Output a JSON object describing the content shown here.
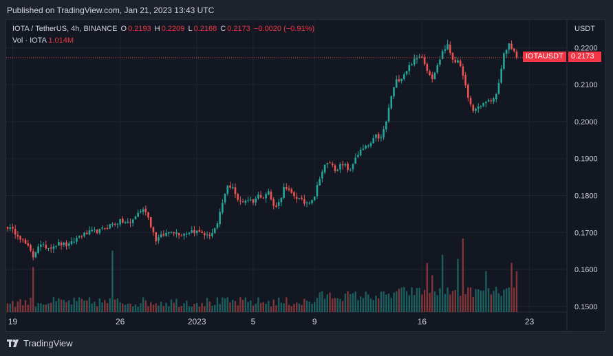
{
  "published": "Published on TradingView.com, Jan 21, 2023 13:43 UTC",
  "legend": {
    "symbol": "IOTA / TetherUS, 4h, BINANCE",
    "o_label": "O",
    "o": "0.2193",
    "h_label": "H",
    "h": "0.2209",
    "l_label": "L",
    "l": "0.2168",
    "c_label": "C",
    "c": "0.2173",
    "change": "−0.0020 (−0.91%)",
    "vol_label": "Vol · IOTA",
    "vol": "1.014M"
  },
  "price_label": {
    "ticker": "IOTAUSDT",
    "value": "0.2173"
  },
  "footer": {
    "brand": "TradingView"
  },
  "colors": {
    "up": "#26a69a",
    "down": "#ef5350",
    "background": "#131722",
    "grid": "#1f2430",
    "text": "#d1d4dc"
  },
  "chart_data": {
    "type": "candlestick",
    "currency_label": "USDT",
    "ylim": [
      0.1485,
      0.2275
    ],
    "y_ticks": [
      "0.2200",
      "0.2100",
      "0.2000",
      "0.1900",
      "0.1800",
      "0.1700",
      "0.1600",
      "0.1500"
    ],
    "x_tick_labels": [
      "19",
      "26",
      "2023",
      "5",
      "9",
      "16",
      "23"
    ],
    "x_tick_bar_index": [
      2,
      44,
      74,
      96,
      120,
      162,
      204
    ],
    "last_price": 0.2173,
    "close_path": [
      [
        0,
        0.1715
      ],
      [
        4,
        0.1695
      ],
      [
        8,
        0.166
      ],
      [
        10,
        0.1635
      ],
      [
        12,
        0.1665
      ],
      [
        16,
        0.166
      ],
      [
        20,
        0.167
      ],
      [
        24,
        0.1665
      ],
      [
        28,
        0.169
      ],
      [
        32,
        0.17
      ],
      [
        36,
        0.1705
      ],
      [
        40,
        0.172
      ],
      [
        44,
        0.173
      ],
      [
        48,
        0.1725
      ],
      [
        50,
        0.1745
      ],
      [
        52,
        0.176
      ],
      [
        54,
        0.176
      ],
      [
        56,
        0.172
      ],
      [
        58,
        0.168
      ],
      [
        60,
        0.169
      ],
      [
        64,
        0.1705
      ],
      [
        68,
        0.1695
      ],
      [
        72,
        0.1705
      ],
      [
        76,
        0.17
      ],
      [
        78,
        0.169
      ],
      [
        80,
        0.17
      ],
      [
        82,
        0.172
      ],
      [
        84,
        0.178
      ],
      [
        86,
        0.1825
      ],
      [
        88,
        0.1825
      ],
      [
        90,
        0.1785
      ],
      [
        92,
        0.1785
      ],
      [
        94,
        0.179
      ],
      [
        96,
        0.1785
      ],
      [
        98,
        0.18
      ],
      [
        100,
        0.18
      ],
      [
        102,
        0.181
      ],
      [
        104,
        0.177
      ],
      [
        106,
        0.178
      ],
      [
        108,
        0.182
      ],
      [
        110,
        0.181
      ],
      [
        112,
        0.18
      ],
      [
        114,
        0.179
      ],
      [
        116,
        0.178
      ],
      [
        118,
        0.1785
      ],
      [
        120,
        0.18
      ],
      [
        122,
        0.185
      ],
      [
        124,
        0.188
      ],
      [
        126,
        0.189
      ],
      [
        128,
        0.187
      ],
      [
        130,
        0.188
      ],
      [
        132,
        0.188
      ],
      [
        134,
        0.1865
      ],
      [
        136,
        0.1905
      ],
      [
        138,
        0.192
      ],
      [
        140,
        0.193
      ],
      [
        142,
        0.194
      ],
      [
        144,
        0.196
      ],
      [
        146,
        0.1955
      ],
      [
        148,
        0.2
      ],
      [
        150,
        0.207
      ],
      [
        152,
        0.211
      ],
      [
        154,
        0.212
      ],
      [
        156,
        0.214
      ],
      [
        158,
        0.216
      ],
      [
        160,
        0.217
      ],
      [
        162,
        0.218
      ],
      [
        164,
        0.214
      ],
      [
        166,
        0.212
      ],
      [
        168,
        0.215
      ],
      [
        170,
        0.219
      ],
      [
        172,
        0.2205
      ],
      [
        174,
        0.217
      ],
      [
        176,
        0.216
      ],
      [
        178,
        0.213
      ],
      [
        180,
        0.206
      ],
      [
        182,
        0.203
      ],
      [
        184,
        0.204
      ],
      [
        186,
        0.205
      ],
      [
        188,
        0.2055
      ],
      [
        190,
        0.206
      ],
      [
        192,
        0.21
      ],
      [
        194,
        0.218
      ],
      [
        196,
        0.221
      ],
      [
        198,
        0.219
      ],
      [
        199,
        0.2173
      ]
    ],
    "n_bars": 200,
    "volume_spikes": [
      [
        10,
        1.1
      ],
      [
        41,
        1.5
      ],
      [
        164,
        1.2
      ],
      [
        166,
        0.9
      ],
      [
        170,
        1.4
      ],
      [
        176,
        1.3
      ],
      [
        178,
        1.8
      ],
      [
        187,
        1.0
      ],
      [
        197,
        1.2
      ],
      [
        199,
        1.0
      ]
    ]
  }
}
